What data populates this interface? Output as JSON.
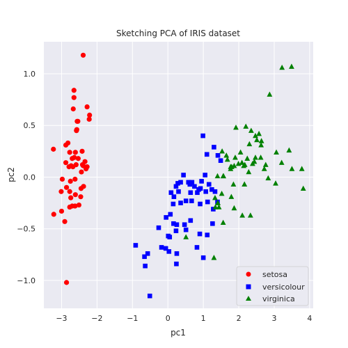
{
  "chart_data": {
    "type": "scatter",
    "title": "Sketching PCA of IRIS dataset",
    "xlabel": "pc1",
    "ylabel": "pc2",
    "xlim": [
      -3.5,
      4.1
    ],
    "ylim": [
      -1.27,
      1.31
    ],
    "xticks": [
      -3,
      -2,
      -1,
      0,
      1,
      2,
      3,
      4
    ],
    "yticks": [
      -1.0,
      -0.5,
      0.0,
      0.5,
      1.0
    ],
    "grid": true,
    "legend_position": "lower-right",
    "series": [
      {
        "name": "setosa",
        "color": "#ff0000",
        "marker": "circle",
        "points": [
          [
            -2.39,
            1.18
          ],
          [
            -2.65,
            0.84
          ],
          [
            -2.65,
            0.77
          ],
          [
            -2.67,
            0.66
          ],
          [
            -2.28,
            0.68
          ],
          [
            -2.21,
            0.6
          ],
          [
            -2.22,
            0.56
          ],
          [
            -2.56,
            0.54
          ],
          [
            -2.57,
            0.46
          ],
          [
            -2.58,
            0.45
          ],
          [
            -2.54,
            0.54
          ],
          [
            -2.88,
            0.31
          ],
          [
            -2.82,
            0.33
          ],
          [
            -3.23,
            0.27
          ],
          [
            -2.77,
            0.24
          ],
          [
            -2.42,
            0.25
          ],
          [
            -2.64,
            0.19
          ],
          [
            -2.61,
            0.24
          ],
          [
            -2.7,
            0.18
          ],
          [
            -2.53,
            0.18
          ],
          [
            -2.88,
            0.14
          ],
          [
            -2.79,
            0.1
          ],
          [
            -2.73,
            0.11
          ],
          [
            -2.41,
            0.12
          ],
          [
            -2.34,
            0.15
          ],
          [
            -2.59,
            0.12
          ],
          [
            -2.28,
            0.1
          ],
          [
            -2.44,
            0.05
          ],
          [
            -2.39,
            0.11
          ],
          [
            -2.68,
            0.1
          ],
          [
            -2.31,
            0.08
          ],
          [
            -2.98,
            -0.02
          ],
          [
            -2.75,
            -0.04
          ],
          [
            -2.38,
            -0.09
          ],
          [
            -2.86,
            -0.1
          ],
          [
            -3.01,
            -0.14
          ],
          [
            -2.77,
            -0.14
          ],
          [
            -2.61,
            -0.17
          ],
          [
            -2.74,
            -0.2
          ],
          [
            -2.46,
            -0.19
          ],
          [
            -3.0,
            -0.33
          ],
          [
            -2.77,
            -0.29
          ],
          [
            -2.7,
            -0.28
          ],
          [
            -2.51,
            -0.27
          ],
          [
            -2.62,
            -0.28
          ],
          [
            -3.22,
            -0.36
          ],
          [
            -2.91,
            -0.43
          ],
          [
            -2.86,
            -1.02
          ],
          [
            -2.62,
            -0.02
          ],
          [
            -2.45,
            -0.11
          ]
        ]
      },
      {
        "name": "versicolour",
        "color": "#0000ff",
        "marker": "square",
        "points": [
          [
            1.1,
            0.22
          ],
          [
            1.3,
            0.29
          ],
          [
            1.49,
            0.16
          ],
          [
            1.05,
            0.02
          ],
          [
            0.99,
            0.4
          ],
          [
            1.41,
            0.21
          ],
          [
            0.95,
            -0.04
          ],
          [
            1.16,
            -0.07
          ],
          [
            0.92,
            -0.11
          ],
          [
            0.75,
            -0.09
          ],
          [
            0.87,
            -0.12
          ],
          [
            0.62,
            -0.07
          ],
          [
            0.68,
            -0.05
          ],
          [
            0.58,
            -0.05
          ],
          [
            0.44,
            0.02
          ],
          [
            0.36,
            -0.05
          ],
          [
            0.28,
            -0.06
          ],
          [
            0.3,
            -0.14
          ],
          [
            0.17,
            -0.19
          ],
          [
            0.09,
            -0.15
          ],
          [
            0.23,
            -0.09
          ],
          [
            1.12,
            -0.24
          ],
          [
            1.24,
            -0.12
          ],
          [
            1.33,
            -0.14
          ],
          [
            1.4,
            -0.24
          ],
          [
            1.07,
            -0.14
          ],
          [
            0.83,
            -0.15
          ],
          [
            0.91,
            -0.26
          ],
          [
            0.67,
            -0.23
          ],
          [
            0.64,
            -0.15
          ],
          [
            1.28,
            -0.31
          ],
          [
            0.36,
            -0.25
          ],
          [
            0.51,
            -0.23
          ],
          [
            0.64,
            -0.42
          ],
          [
            0.15,
            -0.26
          ],
          [
            0.07,
            -0.36
          ],
          [
            -0.05,
            -0.39
          ],
          [
            0.16,
            -0.45
          ],
          [
            0.25,
            -0.46
          ],
          [
            0.47,
            -0.46
          ],
          [
            0.51,
            -0.51
          ],
          [
            -0.26,
            -0.49
          ],
          [
            1.26,
            -0.45
          ],
          [
            0.23,
            -0.52
          ],
          [
            0.01,
            -0.57
          ],
          [
            0.05,
            -0.58
          ],
          [
            -0.18,
            -0.68
          ],
          [
            -0.06,
            -0.69
          ],
          [
            0.9,
            -0.55
          ],
          [
            1.11,
            -0.56
          ],
          [
            0.82,
            -0.68
          ],
          [
            -0.91,
            -0.66
          ],
          [
            0.03,
            -0.72
          ],
          [
            0.25,
            -0.74
          ],
          [
            1.0,
            -0.78
          ],
          [
            -0.57,
            -0.74
          ],
          [
            -0.66,
            -0.77
          ],
          [
            -0.64,
            -0.86
          ],
          [
            0.24,
            -0.84
          ],
          [
            -0.51,
            -1.15
          ]
        ]
      },
      {
        "name": "virginica",
        "color": "#008000",
        "marker": "triangle",
        "points": [
          [
            3.22,
            1.06
          ],
          [
            3.49,
            1.07
          ],
          [
            2.87,
            0.8
          ],
          [
            2.2,
            0.49
          ],
          [
            2.35,
            0.45
          ],
          [
            1.92,
            0.48
          ],
          [
            2.57,
            0.42
          ],
          [
            2.64,
            0.35
          ],
          [
            2.47,
            0.4
          ],
          [
            2.51,
            0.36
          ],
          [
            2.3,
            0.32
          ],
          [
            2.63,
            0.31
          ],
          [
            3.06,
            0.24
          ],
          [
            3.42,
            0.26
          ],
          [
            2.05,
            0.24
          ],
          [
            1.9,
            0.19
          ],
          [
            1.68,
            0.17
          ],
          [
            1.53,
            0.25
          ],
          [
            1.65,
            0.21
          ],
          [
            2.09,
            0.14
          ],
          [
            2.24,
            0.18
          ],
          [
            2.44,
            0.15
          ],
          [
            2.47,
            0.19
          ],
          [
            2.62,
            0.19
          ],
          [
            1.99,
            0.13
          ],
          [
            1.8,
            0.1
          ],
          [
            1.87,
            0.11
          ],
          [
            2.39,
            0.13
          ],
          [
            2.17,
            0.12
          ],
          [
            2.14,
            0.11
          ],
          [
            2.76,
            0.12
          ],
          [
            3.21,
            0.14
          ],
          [
            1.77,
            0.1
          ],
          [
            1.77,
            0.08
          ],
          [
            3.78,
            0.08
          ],
          [
            2.28,
            0.05
          ],
          [
            2.72,
            0.08
          ],
          [
            3.5,
            0.08
          ],
          [
            1.56,
            0.01
          ],
          [
            1.57,
            0.01
          ],
          [
            1.4,
            0.01
          ],
          [
            1.85,
            -0.07
          ],
          [
            2.16,
            -0.07
          ],
          [
            2.83,
            -0.01
          ],
          [
            3.04,
            -0.06
          ],
          [
            3.82,
            -0.11
          ],
          [
            1.52,
            -0.16
          ],
          [
            1.33,
            -0.2
          ],
          [
            1.41,
            -0.25
          ],
          [
            1.44,
            -0.29
          ],
          [
            1.79,
            -0.19
          ],
          [
            1.34,
            -0.29
          ],
          [
            1.87,
            -0.3
          ],
          [
            1.56,
            -0.44
          ],
          [
            0.51,
            -0.58
          ],
          [
            1.3,
            -0.78
          ],
          [
            2.1,
            -0.37
          ],
          [
            2.33,
            -0.37
          ],
          [
            1.41,
            -0.25
          ],
          [
            2.16,
            -0.07
          ]
        ]
      }
    ]
  }
}
